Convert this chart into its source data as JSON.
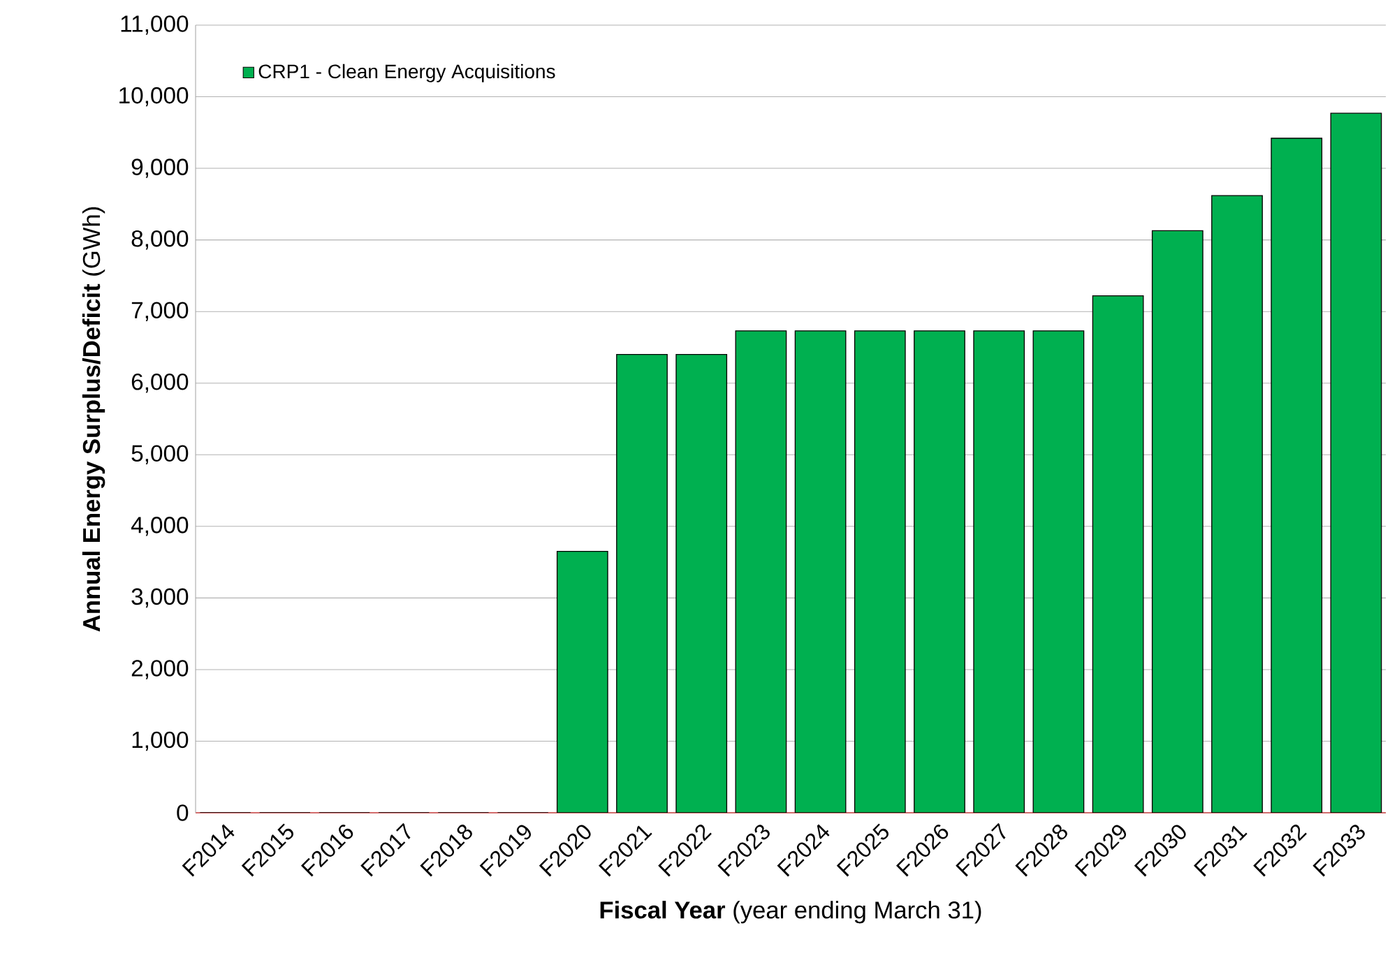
{
  "chart_data": {
    "type": "bar",
    "categories": [
      "F2014",
      "F2015",
      "F2016",
      "F2017",
      "F2018",
      "F2019",
      "F2020",
      "F2021",
      "F2022",
      "F2023",
      "F2024",
      "F2025",
      "F2026",
      "F2027",
      "F2028",
      "F2029",
      "F2030",
      "F2031",
      "F2032",
      "F2033"
    ],
    "series": [
      {
        "name": "CRP1 - Clean Energy Acquisitions",
        "color": "#00b050",
        "values": [
          0,
          0,
          0,
          0,
          0,
          0,
          3650,
          6400,
          6400,
          6730,
          6730,
          6730,
          6730,
          6730,
          6730,
          7220,
          8130,
          8620,
          9420,
          9770
        ]
      }
    ],
    "xlabel": "**Fiscal Year** (year ending March 31)",
    "ylabel": "**Annual Energy Surplus/Deficit** (GWh)",
    "ylim": [
      0,
      11000
    ],
    "yticks": [
      {
        "value": 0,
        "label": "0"
      },
      {
        "value": 1000,
        "label": "1,000"
      },
      {
        "value": 2000,
        "label": "2,000"
      },
      {
        "value": 3000,
        "label": "3,000"
      },
      {
        "value": 4000,
        "label": "4,000"
      },
      {
        "value": 5000,
        "label": "5,000"
      },
      {
        "value": 6000,
        "label": "6,000"
      },
      {
        "value": 7000,
        "label": "7,000"
      },
      {
        "value": 8000,
        "label": "8,000"
      },
      {
        "value": 9000,
        "label": "9,000"
      },
      {
        "value": 10000,
        "label": "10,000"
      },
      {
        "value": 11000,
        "label": "11,000"
      }
    ],
    "grid": "y",
    "legend": "top left"
  }
}
